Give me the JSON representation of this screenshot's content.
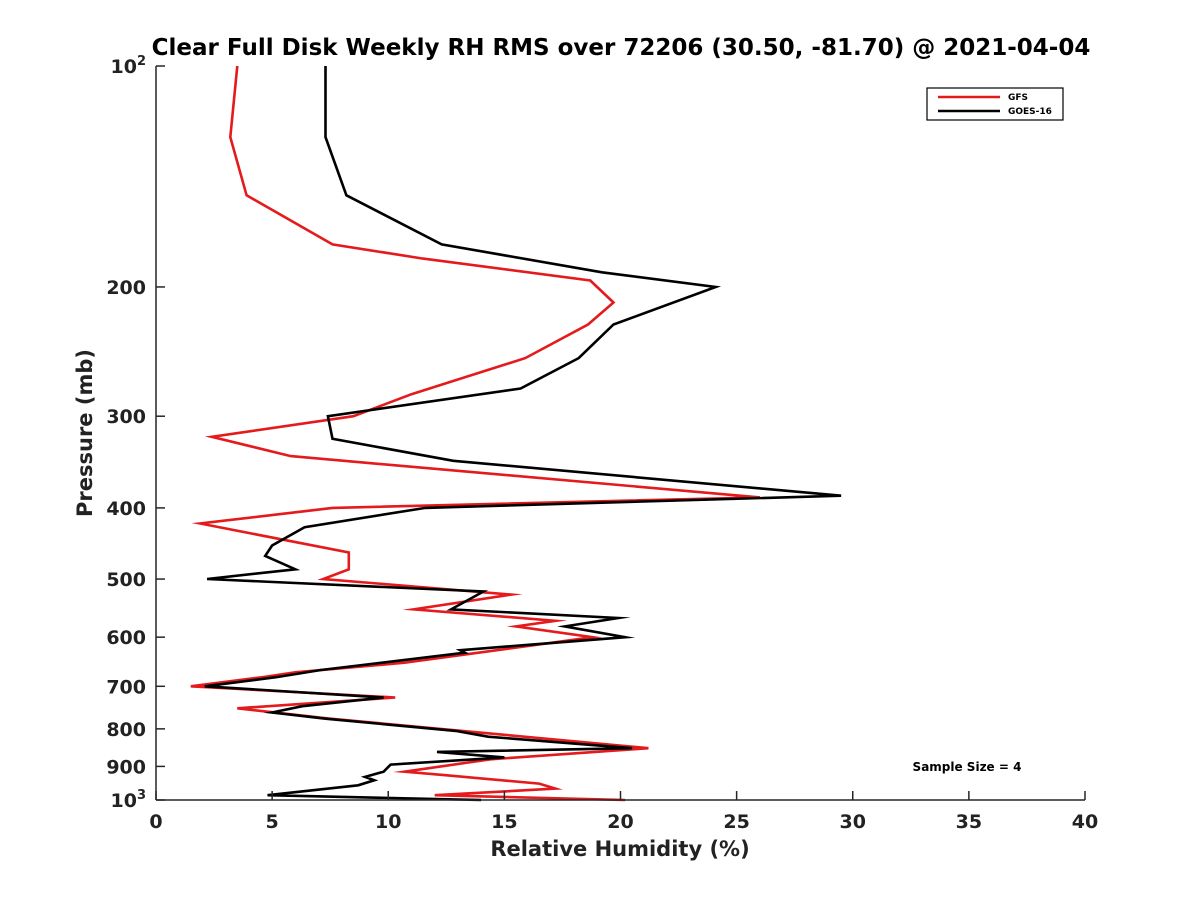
{
  "chart_data": {
    "type": "line",
    "title": "Clear Full Disk Weekly RH RMS over 72206 (30.50, -81.70) @ 2021-04-04",
    "xlabel": "Relative Humidity (%)",
    "ylabel": "Pressure (mb)",
    "xlim": [
      0,
      40
    ],
    "ylim": [
      100,
      1000
    ],
    "y_scale": "log",
    "y_reversed": true,
    "grid": false,
    "x_ticks": [
      0,
      5,
      10,
      15,
      20,
      25,
      30,
      35,
      40
    ],
    "x_tick_labels": [
      "0",
      "5",
      "10",
      "15",
      "20",
      "25",
      "30",
      "35",
      "40"
    ],
    "y_ticks": [
      100,
      200,
      300,
      400,
      500,
      600,
      700,
      800,
      900,
      1000
    ],
    "y_tick_labels": [
      {
        "base": "10",
        "exp": "2"
      },
      {
        "base": "200",
        "exp": ""
      },
      {
        "base": "300",
        "exp": ""
      },
      {
        "base": "400",
        "exp": ""
      },
      {
        "base": "500",
        "exp": ""
      },
      {
        "base": "600",
        "exp": ""
      },
      {
        "base": "700",
        "exp": ""
      },
      {
        "base": "800",
        "exp": ""
      },
      {
        "base": "900",
        "exp": ""
      },
      {
        "base": "10",
        "exp": "3"
      }
    ],
    "legend_position": "top-right",
    "annotation": "Sample Size = 4",
    "series": [
      {
        "name": "GFS",
        "color": "#e41a1c",
        "points": [
          [
            3.5,
            100
          ],
          [
            3.2,
            125
          ],
          [
            3.9,
            150
          ],
          [
            7.6,
            175
          ],
          [
            11.5,
            183
          ],
          [
            18.7,
            196
          ],
          [
            19.7,
            210
          ],
          [
            18.6,
            225
          ],
          [
            15.9,
            250
          ],
          [
            11.0,
            280
          ],
          [
            8.5,
            300
          ],
          [
            2.4,
            320
          ],
          [
            5.8,
            340
          ],
          [
            26.0,
            387
          ],
          [
            7.6,
            400
          ],
          [
            1.9,
            420
          ],
          [
            8.3,
            460
          ],
          [
            8.3,
            485
          ],
          [
            7.2,
            500
          ],
          [
            15.3,
            525
          ],
          [
            11.1,
            550
          ],
          [
            17.2,
            570
          ],
          [
            15.5,
            580
          ],
          [
            18.8,
            600
          ],
          [
            10.7,
            650
          ],
          [
            6.0,
            670
          ],
          [
            4.6,
            680
          ],
          [
            1.5,
            700
          ],
          [
            10.3,
            725
          ],
          [
            3.5,
            750
          ],
          [
            7.5,
            775
          ],
          [
            15.0,
            815
          ],
          [
            21.2,
            850
          ],
          [
            14.4,
            880
          ],
          [
            10.7,
            915
          ],
          [
            12.4,
            925
          ],
          [
            16.5,
            950
          ],
          [
            17.2,
            965
          ],
          [
            12.0,
            985
          ],
          [
            20.2,
            1000
          ]
        ]
      },
      {
        "name": "GOES-16",
        "color": "#000000",
        "points": [
          [
            7.3,
            100
          ],
          [
            7.3,
            125
          ],
          [
            8.2,
            150
          ],
          [
            12.3,
            175
          ],
          [
            19.2,
            191
          ],
          [
            24.1,
            200
          ],
          [
            19.7,
            225
          ],
          [
            18.2,
            250
          ],
          [
            15.7,
            275
          ],
          [
            7.4,
            300
          ],
          [
            7.6,
            322
          ],
          [
            12.8,
            345
          ],
          [
            29.5,
            385
          ],
          [
            11.6,
            400
          ],
          [
            6.4,
            425
          ],
          [
            5.0,
            450
          ],
          [
            4.7,
            465
          ],
          [
            6.0,
            485
          ],
          [
            2.2,
            500
          ],
          [
            14.1,
            520
          ],
          [
            12.7,
            550
          ],
          [
            19.9,
            565
          ],
          [
            17.6,
            580
          ],
          [
            20.2,
            600
          ],
          [
            13.1,
            625
          ],
          [
            13.3,
            630
          ],
          [
            7.1,
            665
          ],
          [
            5.2,
            680
          ],
          [
            2.1,
            700
          ],
          [
            9.8,
            725
          ],
          [
            6.3,
            745
          ],
          [
            5.0,
            760
          ],
          [
            7.3,
            775
          ],
          [
            12.9,
            805
          ],
          [
            14.3,
            820
          ],
          [
            20.5,
            850
          ],
          [
            12.1,
            860
          ],
          [
            15.0,
            875
          ],
          [
            10.1,
            895
          ],
          [
            9.8,
            915
          ],
          [
            9.0,
            930
          ],
          [
            9.4,
            940
          ],
          [
            8.7,
            955
          ],
          [
            4.8,
            985
          ],
          [
            14.0,
            1000
          ]
        ]
      }
    ]
  }
}
